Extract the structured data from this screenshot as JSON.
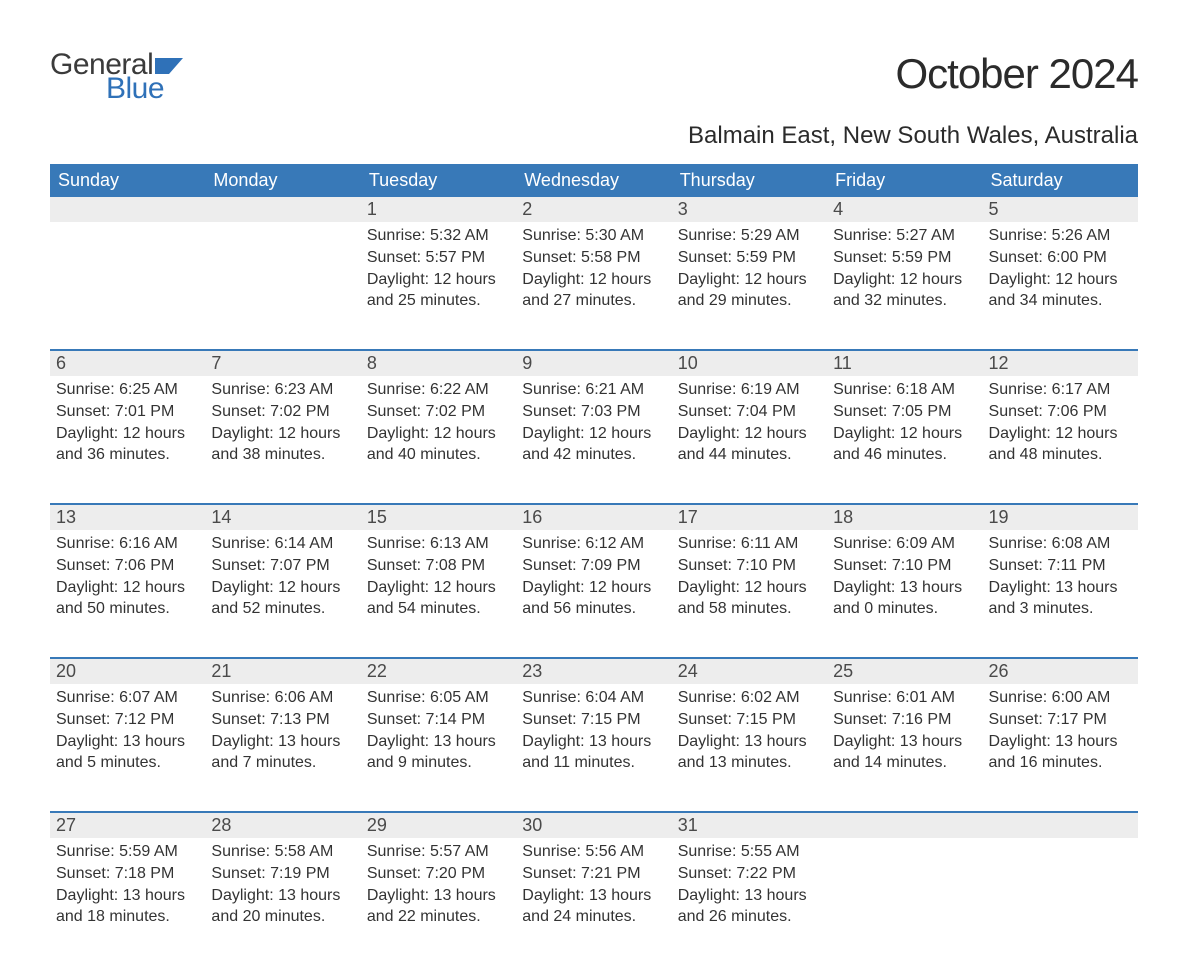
{
  "brand": {
    "word1": "General",
    "word2": "Blue",
    "flag_color": "#2f71b8"
  },
  "title": "October 2024",
  "location": "Balmain East, New South Wales, Australia",
  "colors": {
    "header_bg": "#3879b8",
    "header_text": "#ffffff",
    "daynum_bg": "#ededed",
    "row_border": "#3879b8",
    "body_text": "#333333",
    "title_text": "#2b2b2b"
  },
  "weekdays": [
    "Sunday",
    "Monday",
    "Tuesday",
    "Wednesday",
    "Thursday",
    "Friday",
    "Saturday"
  ],
  "weeks": [
    [
      null,
      null,
      {
        "n": "1",
        "sunrise": "Sunrise: 5:32 AM",
        "sunset": "Sunset: 5:57 PM",
        "dl1": "Daylight: 12 hours",
        "dl2": "and 25 minutes."
      },
      {
        "n": "2",
        "sunrise": "Sunrise: 5:30 AM",
        "sunset": "Sunset: 5:58 PM",
        "dl1": "Daylight: 12 hours",
        "dl2": "and 27 minutes."
      },
      {
        "n": "3",
        "sunrise": "Sunrise: 5:29 AM",
        "sunset": "Sunset: 5:59 PM",
        "dl1": "Daylight: 12 hours",
        "dl2": "and 29 minutes."
      },
      {
        "n": "4",
        "sunrise": "Sunrise: 5:27 AM",
        "sunset": "Sunset: 5:59 PM",
        "dl1": "Daylight: 12 hours",
        "dl2": "and 32 minutes."
      },
      {
        "n": "5",
        "sunrise": "Sunrise: 5:26 AM",
        "sunset": "Sunset: 6:00 PM",
        "dl1": "Daylight: 12 hours",
        "dl2": "and 34 minutes."
      }
    ],
    [
      {
        "n": "6",
        "sunrise": "Sunrise: 6:25 AM",
        "sunset": "Sunset: 7:01 PM",
        "dl1": "Daylight: 12 hours",
        "dl2": "and 36 minutes."
      },
      {
        "n": "7",
        "sunrise": "Sunrise: 6:23 AM",
        "sunset": "Sunset: 7:02 PM",
        "dl1": "Daylight: 12 hours",
        "dl2": "and 38 minutes."
      },
      {
        "n": "8",
        "sunrise": "Sunrise: 6:22 AM",
        "sunset": "Sunset: 7:02 PM",
        "dl1": "Daylight: 12 hours",
        "dl2": "and 40 minutes."
      },
      {
        "n": "9",
        "sunrise": "Sunrise: 6:21 AM",
        "sunset": "Sunset: 7:03 PM",
        "dl1": "Daylight: 12 hours",
        "dl2": "and 42 minutes."
      },
      {
        "n": "10",
        "sunrise": "Sunrise: 6:19 AM",
        "sunset": "Sunset: 7:04 PM",
        "dl1": "Daylight: 12 hours",
        "dl2": "and 44 minutes."
      },
      {
        "n": "11",
        "sunrise": "Sunrise: 6:18 AM",
        "sunset": "Sunset: 7:05 PM",
        "dl1": "Daylight: 12 hours",
        "dl2": "and 46 minutes."
      },
      {
        "n": "12",
        "sunrise": "Sunrise: 6:17 AM",
        "sunset": "Sunset: 7:06 PM",
        "dl1": "Daylight: 12 hours",
        "dl2": "and 48 minutes."
      }
    ],
    [
      {
        "n": "13",
        "sunrise": "Sunrise: 6:16 AM",
        "sunset": "Sunset: 7:06 PM",
        "dl1": "Daylight: 12 hours",
        "dl2": "and 50 minutes."
      },
      {
        "n": "14",
        "sunrise": "Sunrise: 6:14 AM",
        "sunset": "Sunset: 7:07 PM",
        "dl1": "Daylight: 12 hours",
        "dl2": "and 52 minutes."
      },
      {
        "n": "15",
        "sunrise": "Sunrise: 6:13 AM",
        "sunset": "Sunset: 7:08 PM",
        "dl1": "Daylight: 12 hours",
        "dl2": "and 54 minutes."
      },
      {
        "n": "16",
        "sunrise": "Sunrise: 6:12 AM",
        "sunset": "Sunset: 7:09 PM",
        "dl1": "Daylight: 12 hours",
        "dl2": "and 56 minutes."
      },
      {
        "n": "17",
        "sunrise": "Sunrise: 6:11 AM",
        "sunset": "Sunset: 7:10 PM",
        "dl1": "Daylight: 12 hours",
        "dl2": "and 58 minutes."
      },
      {
        "n": "18",
        "sunrise": "Sunrise: 6:09 AM",
        "sunset": "Sunset: 7:10 PM",
        "dl1": "Daylight: 13 hours",
        "dl2": "and 0 minutes."
      },
      {
        "n": "19",
        "sunrise": "Sunrise: 6:08 AM",
        "sunset": "Sunset: 7:11 PM",
        "dl1": "Daylight: 13 hours",
        "dl2": "and 3 minutes."
      }
    ],
    [
      {
        "n": "20",
        "sunrise": "Sunrise: 6:07 AM",
        "sunset": "Sunset: 7:12 PM",
        "dl1": "Daylight: 13 hours",
        "dl2": "and 5 minutes."
      },
      {
        "n": "21",
        "sunrise": "Sunrise: 6:06 AM",
        "sunset": "Sunset: 7:13 PM",
        "dl1": "Daylight: 13 hours",
        "dl2": "and 7 minutes."
      },
      {
        "n": "22",
        "sunrise": "Sunrise: 6:05 AM",
        "sunset": "Sunset: 7:14 PM",
        "dl1": "Daylight: 13 hours",
        "dl2": "and 9 minutes."
      },
      {
        "n": "23",
        "sunrise": "Sunrise: 6:04 AM",
        "sunset": "Sunset: 7:15 PM",
        "dl1": "Daylight: 13 hours",
        "dl2": "and 11 minutes."
      },
      {
        "n": "24",
        "sunrise": "Sunrise: 6:02 AM",
        "sunset": "Sunset: 7:15 PM",
        "dl1": "Daylight: 13 hours",
        "dl2": "and 13 minutes."
      },
      {
        "n": "25",
        "sunrise": "Sunrise: 6:01 AM",
        "sunset": "Sunset: 7:16 PM",
        "dl1": "Daylight: 13 hours",
        "dl2": "and 14 minutes."
      },
      {
        "n": "26",
        "sunrise": "Sunrise: 6:00 AM",
        "sunset": "Sunset: 7:17 PM",
        "dl1": "Daylight: 13 hours",
        "dl2": "and 16 minutes."
      }
    ],
    [
      {
        "n": "27",
        "sunrise": "Sunrise: 5:59 AM",
        "sunset": "Sunset: 7:18 PM",
        "dl1": "Daylight: 13 hours",
        "dl2": "and 18 minutes."
      },
      {
        "n": "28",
        "sunrise": "Sunrise: 5:58 AM",
        "sunset": "Sunset: 7:19 PM",
        "dl1": "Daylight: 13 hours",
        "dl2": "and 20 minutes."
      },
      {
        "n": "29",
        "sunrise": "Sunrise: 5:57 AM",
        "sunset": "Sunset: 7:20 PM",
        "dl1": "Daylight: 13 hours",
        "dl2": "and 22 minutes."
      },
      {
        "n": "30",
        "sunrise": "Sunrise: 5:56 AM",
        "sunset": "Sunset: 7:21 PM",
        "dl1": "Daylight: 13 hours",
        "dl2": "and 24 minutes."
      },
      {
        "n": "31",
        "sunrise": "Sunrise: 5:55 AM",
        "sunset": "Sunset: 7:22 PM",
        "dl1": "Daylight: 13 hours",
        "dl2": "and 26 minutes."
      },
      null,
      null
    ]
  ]
}
